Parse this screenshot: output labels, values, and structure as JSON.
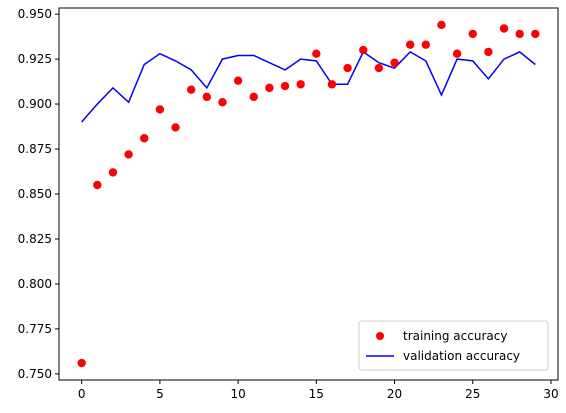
{
  "chart_data": {
    "type": "line",
    "x": [
      0,
      1,
      2,
      3,
      4,
      5,
      6,
      7,
      8,
      9,
      10,
      11,
      12,
      13,
      14,
      15,
      16,
      17,
      18,
      19,
      20,
      21,
      22,
      23,
      24,
      25,
      26,
      27,
      28,
      29
    ],
    "series": [
      {
        "name": "training accuracy",
        "style": "scatter",
        "color": "#ff0000",
        "values": [
          0.756,
          0.855,
          0.862,
          0.872,
          0.881,
          0.897,
          0.887,
          0.908,
          0.904,
          0.901,
          0.913,
          0.904,
          0.909,
          0.91,
          0.911,
          0.928,
          0.911,
          0.92,
          0.93,
          0.92,
          0.923,
          0.933,
          0.933,
          0.944,
          0.928,
          0.939,
          0.929,
          0.942,
          0.939,
          0.939
        ]
      },
      {
        "name": "validation accuracy",
        "style": "line",
        "color": "#0000ff",
        "values": [
          0.89,
          0.9,
          0.909,
          0.901,
          0.922,
          0.928,
          0.924,
          0.919,
          0.909,
          0.925,
          0.927,
          0.927,
          0.923,
          0.919,
          0.925,
          0.924,
          0.911,
          0.911,
          0.929,
          0.923,
          0.92,
          0.929,
          0.924,
          0.905,
          0.925,
          0.924,
          0.914,
          0.925,
          0.929,
          0.922
        ]
      }
    ],
    "xlim": [
      -1.45,
      30.45
    ],
    "ylim": [
      0.7466,
      0.9534
    ],
    "xticks": [
      0,
      5,
      10,
      15,
      20,
      25,
      30
    ],
    "xtick_labels": [
      "0",
      "5",
      "10",
      "15",
      "20",
      "25",
      "30"
    ],
    "yticks": [
      0.75,
      0.775,
      0.8,
      0.825,
      0.85,
      0.875,
      0.9,
      0.925,
      0.95
    ],
    "ytick_labels": [
      "0.750",
      "0.775",
      "0.800",
      "0.825",
      "0.850",
      "0.875",
      "0.900",
      "0.925",
      "0.950"
    ],
    "grid": false,
    "legend_position": "lower-right",
    "title": "",
    "xlabel": "",
    "ylabel": ""
  }
}
